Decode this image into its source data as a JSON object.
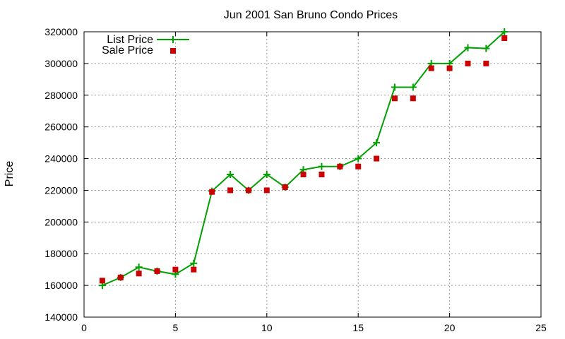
{
  "chart_data": {
    "type": "line",
    "title": "Jun 2001 San Bruno Condo Prices",
    "xlabel": "",
    "ylabel": "Price",
    "xlim": [
      0,
      25
    ],
    "ylim": [
      140000,
      320000
    ],
    "xticks": [
      0,
      5,
      10,
      15,
      20,
      25
    ],
    "yticks": [
      140000,
      160000,
      180000,
      200000,
      220000,
      240000,
      260000,
      280000,
      300000,
      320000
    ],
    "grid": true,
    "legend_position": "top-left",
    "series": [
      {
        "name": "List Price",
        "style": "line-with-plus-markers",
        "color": "#00a000",
        "x": [
          1,
          2,
          3,
          4,
          5,
          6,
          7,
          8,
          9,
          10,
          11,
          12,
          13,
          14,
          15,
          16,
          17,
          18,
          19,
          20,
          21,
          22,
          23
        ],
        "y": [
          160000,
          165000,
          171500,
          169000,
          167000,
          174000,
          219500,
          230000,
          220000,
          230000,
          222000,
          233000,
          235000,
          235000,
          240000,
          250000,
          285000,
          285000,
          300000,
          300000,
          310000,
          309500,
          320000
        ]
      },
      {
        "name": "Sale Price",
        "style": "square-markers",
        "color": "#cc0000",
        "x": [
          1,
          2,
          3,
          4,
          5,
          6,
          7,
          8,
          9,
          10,
          11,
          12,
          13,
          14,
          15,
          16,
          17,
          18,
          19,
          20,
          21,
          22,
          23
        ],
        "y": [
          163000,
          165000,
          167500,
          169000,
          170000,
          170000,
          219000,
          220000,
          220000,
          220000,
          222000,
          230000,
          230000,
          235000,
          235000,
          240000,
          278000,
          278000,
          297000,
          297000,
          300000,
          300000,
          316000
        ]
      }
    ]
  }
}
